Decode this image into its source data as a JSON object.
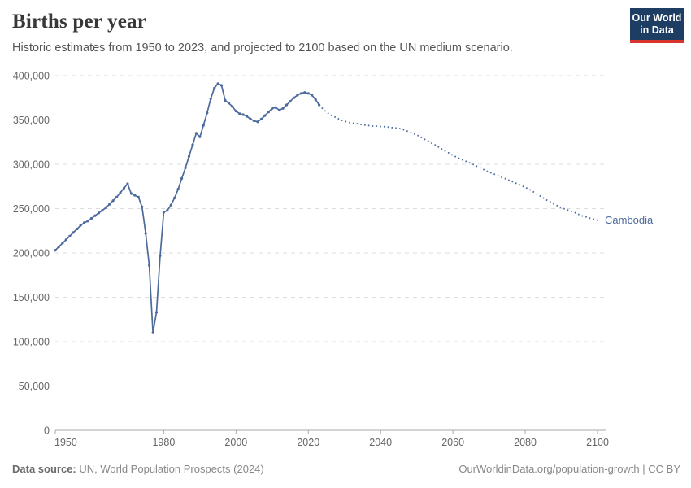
{
  "header": {
    "title": "Births per year",
    "subtitle": "Historic estimates from 1950 to 2023, and projected to 2100 based on the UN medium scenario.",
    "logo_line1": "Our World",
    "logo_line2": "in Data"
  },
  "footer": {
    "source_label": "Data source:",
    "source_text": " UN, World Population Prospects (2024)",
    "credit": "OurWorldinData.org/population-growth | CC BY"
  },
  "chart_data": {
    "type": "line",
    "title": "Births per year",
    "entity_label": "Cambodia",
    "xlabel": "",
    "ylabel": "",
    "xlim": [
      1950,
      2100
    ],
    "ylim": [
      0,
      400000
    ],
    "x_ticks": [
      1950,
      1980,
      2000,
      2020,
      2040,
      2060,
      2080,
      2100
    ],
    "y_ticks": [
      0,
      50000,
      100000,
      150000,
      200000,
      250000,
      300000,
      350000,
      400000
    ],
    "y_tick_labels": [
      "0",
      "50,000",
      "100,000",
      "150,000",
      "200,000",
      "250,000",
      "300,000",
      "350,000",
      "400,000"
    ],
    "grid": "horizontal-dashed",
    "legend_position": "end-of-line",
    "line_color": "#4c6a9c",
    "axis_color": "#a9a9a9",
    "grid_color": "#dddddd",
    "tick_label_color": "#666666",
    "series": [
      {
        "name": "Cambodia — historic estimates",
        "style": "solid",
        "markers": true,
        "start_year": 1950,
        "values": [
          203000,
          207000,
          211000,
          215000,
          219000,
          223000,
          227000,
          231000,
          234000,
          236000,
          239000,
          242000,
          245000,
          248000,
          251000,
          255000,
          259000,
          263000,
          268000,
          273000,
          278000,
          267000,
          265000,
          263000,
          252000,
          222000,
          186000,
          110000,
          133000,
          197000,
          246000,
          248000,
          254000,
          262000,
          272000,
          284000,
          296000,
          309000,
          322000,
          335000,
          331000,
          344000,
          358000,
          374000,
          386000,
          391000,
          389000,
          372000,
          369000,
          365000,
          360000,
          357000,
          356000,
          354000,
          351000,
          349000,
          348000,
          351000,
          355000,
          359000,
          363000,
          364000,
          361000,
          363000,
          367000,
          371000,
          375000,
          378000,
          380000,
          381000,
          380000,
          378000,
          373000,
          367000
        ]
      },
      {
        "name": "Cambodia — UN medium scenario projection",
        "style": "dotted",
        "markers": false,
        "start_year": 2023,
        "values": [
          367000,
          362500,
          359000,
          356000,
          354000,
          352000,
          350000,
          348500,
          347500,
          346500,
          346000,
          345500,
          344500,
          344000,
          343500,
          343000,
          343000,
          342500,
          342500,
          342000,
          341500,
          341000,
          340500,
          339500,
          338000,
          336500,
          335000,
          333000,
          331000,
          328500,
          326500,
          324000,
          322000,
          319500,
          317000,
          314500,
          312500,
          310000,
          308000,
          306000,
          304500,
          302500,
          301000,
          299000,
          297000,
          295000,
          293000,
          291000,
          289500,
          288000,
          286000,
          284500,
          283000,
          281000,
          279500,
          277500,
          276000,
          274000,
          272000,
          269500,
          267000,
          264500,
          262000,
          259500,
          257500,
          255000,
          253000,
          251000,
          249500,
          248000,
          246500,
          245000,
          243000,
          241500,
          240500,
          239000,
          238000,
          237000
        ]
      }
    ]
  }
}
